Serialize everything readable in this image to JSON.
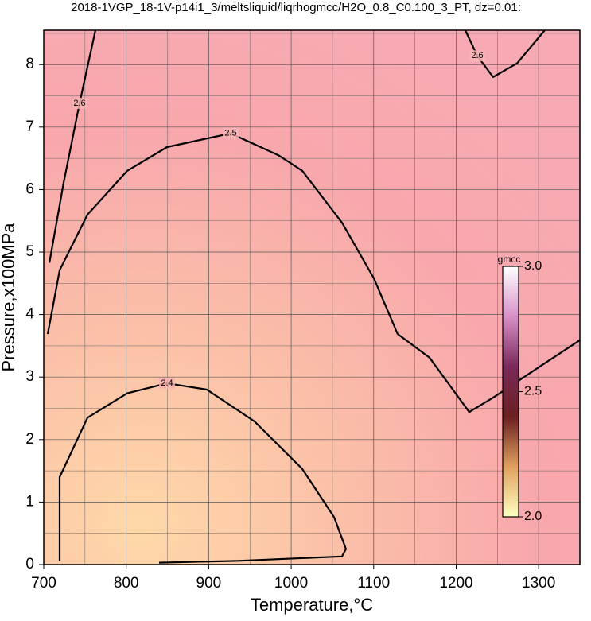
{
  "chart_data": {
    "type": "contour",
    "title": "2018-1VGP_18-1V-p14i1_3/meltsliquid/liqrhogmcc/H2O_0.8_C0.100_3_PT, dz=0.01:",
    "xlabel": "Temperature,°C",
    "ylabel": "Pressure,x100MPa",
    "xlim": [
      700,
      1350
    ],
    "ylim": [
      0,
      8.55
    ],
    "xticks": [
      700,
      800,
      900,
      1000,
      1100,
      1200,
      1300
    ],
    "yticks": [
      0,
      1,
      2,
      3,
      4,
      5,
      6,
      7,
      8
    ],
    "xminor": [
      750,
      850,
      950,
      1050,
      1150,
      1250
    ],
    "yminor": [
      0.5,
      1.5,
      2.5,
      3.5,
      4.5,
      5.5,
      6.5,
      7.5,
      8.5
    ],
    "grid": true,
    "contours": [
      {
        "level": 2.5,
        "x": [
          704.8,
          719.3,
          753,
          801.3,
          849.5,
          926.6,
          984.5,
          1013.4,
          1061.6,
          1100.2,
          1129.1,
          1167.7,
          1215.9,
          1244.8,
          1302.7,
          1350
        ],
        "y": [
          3.69,
          4.71,
          5.6,
          6.3,
          6.68,
          6.9,
          6.55,
          6.3,
          5.47,
          4.58,
          3.69,
          3.31,
          2.44,
          2.67,
          3.18,
          3.59
        ]
      },
      {
        "level": 2.4,
        "x": [
          719.3,
          719.3,
          753,
          801.3,
          849.5,
          897.7,
          955.6,
          1013.4,
          1052,
          1066.4,
          1061.6,
          936.3,
          839.8
        ],
        "y": [
          0.06,
          1.4,
          2.35,
          2.74,
          2.9,
          2.8,
          2.29,
          1.53,
          0.76,
          0.25,
          0.13,
          0.06,
          0.03
        ]
      },
      {
        "level": 2.6,
        "x": [
          1211.1,
          1225.6,
          1244.8,
          1273.8,
          1307.5
        ],
        "y": [
          8.55,
          8.14,
          7.8,
          8.02,
          8.55
        ]
      },
      {
        "level": 2.6,
        "x": [
          762.7,
          743.4,
          724.1,
          706.8
        ],
        "y": [
          8.55,
          7.38,
          6.11,
          4.83
        ]
      }
    ],
    "colorbar": {
      "label": "gmcc",
      "lim": [
        2.0,
        3.0
      ],
      "ticks": [
        {
          "value": 2,
          "label": "2.0"
        },
        {
          "value": 2.5,
          "label": "2.5"
        },
        {
          "value": 3,
          "label": "3.0"
        }
      ],
      "colors": [
        "#ffffc0",
        "#e0a060",
        "#6a1f20",
        "#7a2a5a",
        "#d890c8",
        "#ffffff"
      ]
    }
  }
}
